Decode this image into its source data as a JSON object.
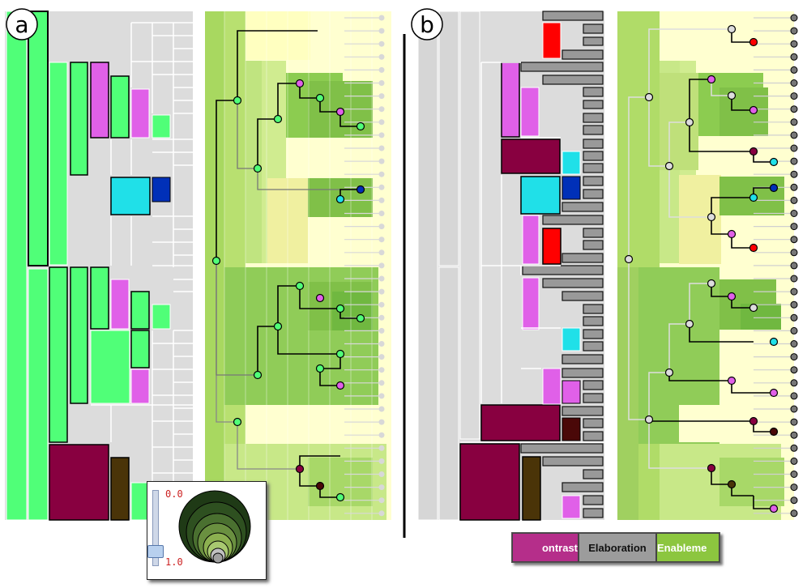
{
  "panels": [
    {
      "label": "a"
    },
    {
      "label": "b"
    }
  ],
  "legend": {
    "contrast": "ontrast",
    "elaboration": "Elaboration",
    "enablement": "Enableme"
  },
  "slider": {
    "min_label": "0.0",
    "max_label": "1.0"
  },
  "colors": {
    "contrast": "#e060e8",
    "contrast_dark": "#880040",
    "elaboration": "#999999",
    "enablement": "#90c050",
    "green_node": "#50ff78",
    "cyan": "#20e0e8",
    "blue": "#0030b8",
    "red": "#ff0000",
    "brown": "#4a3408",
    "cream": "#ffffd0"
  },
  "icons": [
    "panel-a-badge-icon",
    "panel-b-badge-icon",
    "slider-handle-icon",
    "nested-circles-icon"
  ]
}
